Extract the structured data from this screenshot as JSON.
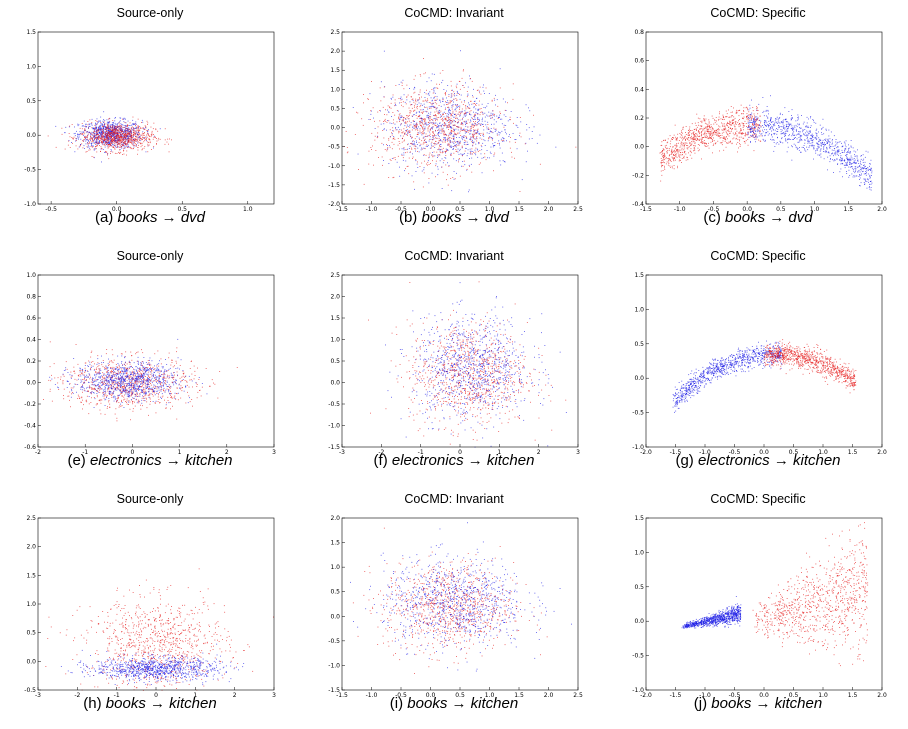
{
  "figure": {
    "colors": {
      "source": "#1f1fe6",
      "target": "#e61f1f",
      "frame": "#000000"
    }
  },
  "chart_data": [
    {
      "type": "scatter",
      "title": "Source-only",
      "caption": {
        "prefix": "(a) ",
        "src": "books",
        "arrow": " → ",
        "tgt": "dvd"
      },
      "xlim": [
        -0.6,
        1.2
      ],
      "ylim": [
        -1.0,
        1.5
      ],
      "xticks": [
        "-0.5",
        "0.0",
        "0.5",
        "1.0"
      ],
      "xtick_vals": [
        -0.5,
        0,
        0.5,
        1.0
      ],
      "yticks": [
        "-1.0",
        "-0.5",
        "0.0",
        "0.5",
        "1.0",
        "1.5"
      ],
      "ytick_vals": [
        -1.0,
        -0.5,
        0,
        0.5,
        1.0,
        1.5
      ],
      "series": [
        {
          "color": "source",
          "center": [
            -0.05,
            0.02
          ],
          "spread": [
            0.12,
            0.1
          ],
          "shape": "blob"
        },
        {
          "color": "target",
          "center": [
            0.0,
            -0.02
          ],
          "spread": [
            0.14,
            0.1
          ],
          "shape": "blob"
        }
      ]
    },
    {
      "type": "scatter",
      "title": "CoCMD: Invariant",
      "caption": {
        "prefix": "(b) ",
        "src": "books",
        "arrow": " → ",
        "tgt": "dvd"
      },
      "xlim": [
        -1.5,
        2.5
      ],
      "ylim": [
        -2.0,
        2.5
      ],
      "xticks": [
        "-1.5",
        "-1.0",
        "-0.5",
        "0.0",
        "0.5",
        "1.0",
        "1.5",
        "2.0",
        "2.5"
      ],
      "xtick_vals": [
        -1.5,
        -1.0,
        -0.5,
        0,
        0.5,
        1.0,
        1.5,
        2.0,
        2.5
      ],
      "yticks": [
        "-2.0",
        "-1.5",
        "-1.0",
        "-0.5",
        "0.0",
        "0.5",
        "1.0",
        "1.5",
        "2.0",
        "2.5"
      ],
      "ytick_vals": [
        -2.0,
        -1.5,
        -1.0,
        -0.5,
        0,
        0.5,
        1.0,
        1.5,
        2.0,
        2.5
      ],
      "series": [
        {
          "color": "source",
          "center": [
            0.3,
            0.05
          ],
          "spread": [
            0.55,
            0.55
          ],
          "shape": "blob"
        },
        {
          "color": "target",
          "center": [
            0.1,
            0.0
          ],
          "spread": [
            0.55,
            0.55
          ],
          "shape": "blob"
        }
      ]
    },
    {
      "type": "scatter",
      "title": "CoCMD: Specific",
      "caption": {
        "prefix": "(c) ",
        "src": "books",
        "arrow": " → ",
        "tgt": "dvd"
      },
      "xlim": [
        -1.5,
        2.0
      ],
      "ylim": [
        -0.4,
        0.8
      ],
      "xticks": [
        "-1.5",
        "-1.0",
        "-0.5",
        "0.0",
        "0.5",
        "1.0",
        "1.5",
        "2.0"
      ],
      "xtick_vals": [
        -1.5,
        -1.0,
        -0.5,
        0,
        0.5,
        1.0,
        1.5,
        2.0
      ],
      "yticks": [
        "-0.4",
        "-0.2",
        "0.0",
        "0.2",
        "0.4",
        "0.6",
        "0.8"
      ],
      "ytick_vals": [
        -0.4,
        -0.2,
        0,
        0.2,
        0.4,
        0.6,
        0.8
      ],
      "series": [
        {
          "color": "target",
          "shape": "arc",
          "x": [
            -1.3,
            0.2
          ],
          "peak": 0.15,
          "vertex": 0.1,
          "curv": 0.12,
          "spread": 0.06
        },
        {
          "color": "source",
          "shape": "arc",
          "x": [
            0.0,
            1.85
          ],
          "peak": 0.15,
          "vertex": 0.1,
          "curv": 0.12,
          "spread": 0.06
        }
      ]
    },
    {
      "type": "scatter",
      "title": "Source-only",
      "caption": {
        "prefix": "(e) ",
        "src": "electronics",
        "arrow": " → ",
        "tgt": "kitchen"
      },
      "xlim": [
        -2,
        3
      ],
      "ylim": [
        -0.6,
        1.0
      ],
      "xticks": [
        "-2",
        "-1",
        "0",
        "1",
        "2",
        "3"
      ],
      "xtick_vals": [
        -2,
        -1,
        0,
        1,
        2,
        3
      ],
      "yticks": [
        "-0.6",
        "-0.4",
        "-0.2",
        "0.0",
        "0.2",
        "0.4",
        "0.6",
        "0.8",
        "1.0"
      ],
      "ytick_vals": [
        -0.6,
        -0.4,
        -0.2,
        0,
        0.2,
        0.4,
        0.6,
        0.8,
        1.0
      ],
      "series": [
        {
          "color": "target",
          "center": [
            -0.1,
            0.0
          ],
          "spread": [
            0.7,
            0.12
          ],
          "shape": "blob"
        },
        {
          "color": "source",
          "center": [
            -0.1,
            0.02
          ],
          "spread": [
            0.55,
            0.09
          ],
          "shape": "blob"
        }
      ]
    },
    {
      "type": "scatter",
      "title": "CoCMD: Invariant",
      "caption": {
        "prefix": "(f) ",
        "src": "electronics",
        "arrow": " → ",
        "tgt": "kitchen"
      },
      "xlim": [
        -3,
        3
      ],
      "ylim": [
        -1.5,
        2.5
      ],
      "xticks": [
        "-3",
        "-2",
        "-1",
        "0",
        "1",
        "2",
        "3"
      ],
      "xtick_vals": [
        -3,
        -2,
        -1,
        0,
        1,
        2,
        3
      ],
      "yticks": [
        "-1.5",
        "-1.0",
        "-0.5",
        "0.0",
        "0.5",
        "1.0",
        "1.5",
        "2.0",
        "2.5"
      ],
      "ytick_vals": [
        -1.5,
        -1.0,
        -0.5,
        0,
        0.5,
        1.0,
        1.5,
        2.0,
        2.5
      ],
      "series": [
        {
          "color": "target",
          "center": [
            0.2,
            0.2
          ],
          "spread": [
            0.75,
            0.6
          ],
          "shape": "blob"
        },
        {
          "color": "source",
          "center": [
            0.3,
            0.35
          ],
          "spread": [
            0.75,
            0.6
          ],
          "shape": "blob"
        }
      ]
    },
    {
      "type": "scatter",
      "title": "CoCMD: Specific",
      "caption": {
        "prefix": "(g) ",
        "src": "electronics",
        "arrow": " → ",
        "tgt": "kitchen"
      },
      "xlim": [
        -2.0,
        2.0
      ],
      "ylim": [
        -1.0,
        1.5
      ],
      "xticks": [
        "-2.0",
        "-1.5",
        "-1.0",
        "-0.5",
        "0.0",
        "0.5",
        "1.0",
        "1.5",
        "2.0"
      ],
      "xtick_vals": [
        -2.0,
        -1.5,
        -1.0,
        -0.5,
        0,
        0.5,
        1.0,
        1.5,
        2.0
      ],
      "yticks": [
        "-1.0",
        "-0.5",
        "0.0",
        "0.5",
        "1.0",
        "1.5"
      ],
      "ytick_vals": [
        -1.0,
        -0.5,
        0,
        0.5,
        1.0,
        1.5
      ],
      "series": [
        {
          "color": "source",
          "shape": "arc",
          "x": [
            -1.55,
            0.3
          ],
          "peak": 0.35,
          "vertex": 0.2,
          "curv": 0.22,
          "spread": 0.08
        },
        {
          "color": "target",
          "shape": "arc",
          "x": [
            0.0,
            1.55
          ],
          "peak": 0.35,
          "vertex": 0.2,
          "curv": 0.22,
          "spread": 0.08
        }
      ]
    },
    {
      "type": "scatter",
      "title": "Source-only",
      "caption": {
        "prefix": "(h) ",
        "src": "books",
        "arrow": " → ",
        "tgt": "kitchen"
      },
      "xlim": [
        -3,
        3
      ],
      "ylim": [
        -0.5,
        2.5
      ],
      "xticks": [
        "-3",
        "-2",
        "-1",
        "0",
        "1",
        "2",
        "3"
      ],
      "xtick_vals": [
        -3,
        -2,
        -1,
        0,
        1,
        2,
        3
      ],
      "yticks": [
        "-0.5",
        "0.0",
        "0.5",
        "1.0",
        "1.5",
        "2.0",
        "2.5"
      ],
      "ytick_vals": [
        -0.5,
        0,
        0.5,
        1.0,
        1.5,
        2.0,
        2.5
      ],
      "series": [
        {
          "color": "target",
          "center": [
            0.0,
            0.3
          ],
          "spread": [
            0.9,
            0.4
          ],
          "shape": "blob"
        },
        {
          "color": "source",
          "center": [
            0.0,
            -0.12
          ],
          "spread": [
            0.8,
            0.1
          ],
          "shape": "blob"
        }
      ]
    },
    {
      "type": "scatter",
      "title": "CoCMD: Invariant",
      "caption": {
        "prefix": "(i) ",
        "src": "books",
        "arrow": " → ",
        "tgt": "kitchen"
      },
      "xlim": [
        -1.5,
        2.5
      ],
      "ylim": [
        -1.5,
        2.0
      ],
      "xticks": [
        "-1.5",
        "-1.0",
        "-0.5",
        "0.0",
        "0.5",
        "1.0",
        "1.5",
        "2.0",
        "2.5"
      ],
      "xtick_vals": [
        -1.5,
        -1.0,
        -0.5,
        0,
        0.5,
        1.0,
        1.5,
        2.0,
        2.5
      ],
      "yticks": [
        "-1.5",
        "-1.0",
        "-0.5",
        "0.0",
        "0.5",
        "1.0",
        "1.5",
        "2.0"
      ],
      "ytick_vals": [
        -1.5,
        -1.0,
        -0.5,
        0,
        0.5,
        1.0,
        1.5,
        2.0
      ],
      "series": [
        {
          "color": "target",
          "center": [
            0.3,
            0.2
          ],
          "spread": [
            0.55,
            0.45
          ],
          "shape": "blob"
        },
        {
          "color": "source",
          "center": [
            0.4,
            0.3
          ],
          "spread": [
            0.6,
            0.45
          ],
          "shape": "blob"
        }
      ]
    },
    {
      "type": "scatter",
      "title": "CoCMD: Specific",
      "caption": {
        "prefix": "(j) ",
        "src": "books",
        "arrow": " → ",
        "tgt": "kitchen"
      },
      "xlim": [
        -2.0,
        2.0
      ],
      "ylim": [
        -1.0,
        1.5
      ],
      "xticks": [
        "-2.0",
        "-1.5",
        "-1.0",
        "-0.5",
        "0.0",
        "0.5",
        "1.0",
        "1.5",
        "2.0"
      ],
      "xtick_vals": [
        -2.0,
        -1.5,
        -1.0,
        -0.5,
        0,
        0.5,
        1.0,
        1.5,
        2.0
      ],
      "yticks": [
        "-1.0",
        "-0.5",
        "0.0",
        "0.5",
        "1.0",
        "1.5"
      ],
      "ytick_vals": [
        -1.0,
        -0.5,
        0,
        0.5,
        1.0,
        1.5
      ],
      "series": [
        {
          "color": "source",
          "shape": "wedge",
          "x": [
            -1.4,
            -0.4
          ],
          "y0": -0.08,
          "slope": 0.2,
          "spread": 0.05
        },
        {
          "color": "target",
          "shape": "wedge",
          "x": [
            -0.2,
            1.75
          ],
          "y0": 0.0,
          "slope": 0.25,
          "spread": 0.35
        }
      ]
    }
  ]
}
